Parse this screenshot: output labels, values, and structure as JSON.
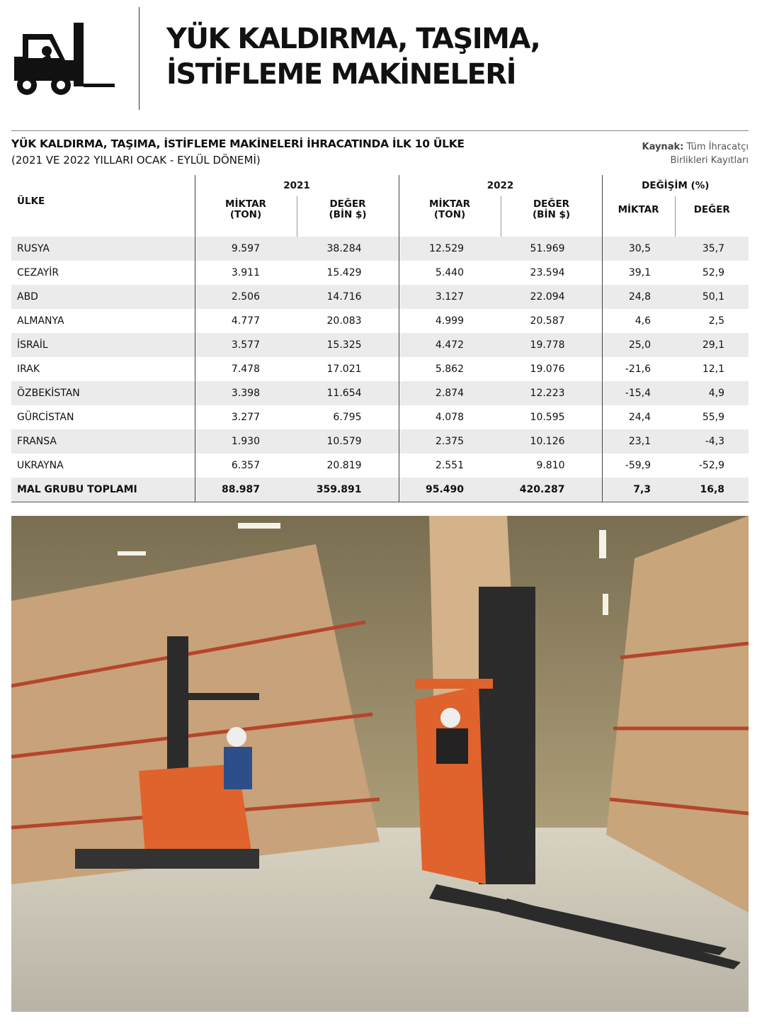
{
  "header": {
    "title_lines": [
      "YÜK KALDIRMA, TAŞIMA,",
      "İSTİFLEME MAKİNELERİ"
    ]
  },
  "table": {
    "title": "YÜK KALDIRMA, TAŞIMA, İSTİFLEME MAKİNELERİ İHRACATINDA İLK 10 ÜLKE",
    "subtitle": "(2021 VE 2022 YILLARI OCAK - EYLÜL DÖNEMİ)",
    "source_label": "Kaynak:",
    "source": "Tüm İhracatçı Birlikleri Kayıtları",
    "country_header": "ÜLKE",
    "groups": [
      "2021",
      "2022",
      "DEĞİŞİM (%)"
    ],
    "subheaders": [
      "MİKTAR\n(TON)",
      "DEĞER\n(BİN $)",
      "MİKTAR\n(TON)",
      "DEĞER\n(BİN $)",
      "MİKTAR",
      "DEĞER"
    ],
    "rows": [
      [
        "RUSYA",
        "9.597",
        "38.284",
        "12.529",
        "51.969",
        "30,5",
        "35,7"
      ],
      [
        "CEZAYİR",
        "3.911",
        "15.429",
        "5.440",
        "23.594",
        "39,1",
        "52,9"
      ],
      [
        "ABD",
        "2.506",
        "14.716",
        "3.127",
        "22.094",
        "24,8",
        "50,1"
      ],
      [
        "ALMANYA",
        "4.777",
        "20.083",
        "4.999",
        "20.587",
        "4,6",
        "2,5"
      ],
      [
        "İSRAİL",
        "3.577",
        "15.325",
        "4.472",
        "19.778",
        "25,0",
        "29,1"
      ],
      [
        "IRAK",
        "7.478",
        "17.021",
        "5.862",
        "19.076",
        "-21,6",
        "12,1"
      ],
      [
        "ÖZBEKİSTAN",
        "3.398",
        "11.654",
        "2.874",
        "12.223",
        "-15,4",
        "4,9"
      ],
      [
        "GÜRCİSTAN",
        "3.277",
        "6.795",
        "4.078",
        "10.595",
        "24,4",
        "55,9"
      ],
      [
        "FRANSA",
        "1.930",
        "10.579",
        "2.375",
        "10.126",
        "23,1",
        "-4,3"
      ],
      [
        "UKRAYNA",
        "6.357",
        "20.819",
        "2.551",
        "9.810",
        "-59,9",
        "-52,9"
      ]
    ],
    "total": [
      "MAL GRUBU TOPLAMI",
      "88.987",
      "359.891",
      "95.490",
      "420.287",
      "7,3",
      "16,8"
    ]
  }
}
